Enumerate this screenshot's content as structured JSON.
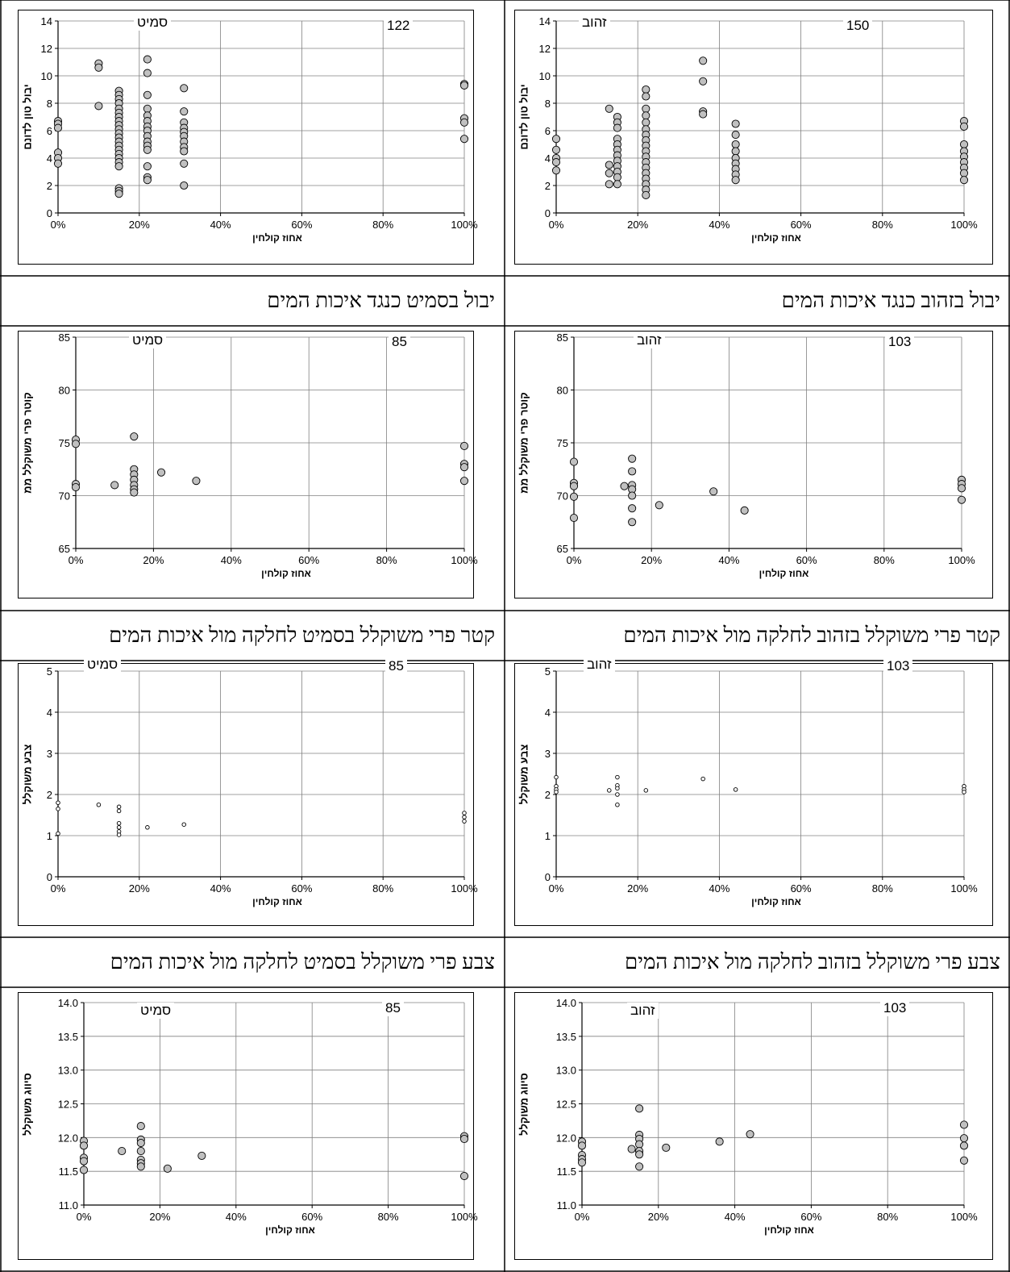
{
  "captions": {
    "r1_left": "יבול בסמיט כנגד איכות המים",
    "r1_right": "יבול בזהוב כנגד איכות המים",
    "r2_left": "קטר פרי משוקלל בסמיט לחלקה מול איכות המים",
    "r2_right": "קטר פרי משוקלל בזהוב לחלקה מול איכות המים",
    "r3_left": "צבע פרי משוקלל בסמיט לחלקה מול איכות המים",
    "r3_right": "צבע פרי משוקלל בזהוב לחלקה מול איכות המים"
  },
  "chart_data": [
    {
      "id": "yield-smit",
      "type": "scatter",
      "variety": "סמיט",
      "count": "122",
      "xlabel": "אחוז קולחין",
      "ylabel": "יבול טון לדונם",
      "xlim": [
        0,
        1
      ],
      "ylim": [
        0,
        14
      ],
      "x_ticks": [
        "0%",
        "20%",
        "40%",
        "60%",
        "80%",
        "100%"
      ],
      "y_ticks": [
        "0",
        "2",
        "4",
        "6",
        "8",
        "10",
        "12",
        "14"
      ],
      "marker": "large",
      "points": [
        [
          0,
          6.7
        ],
        [
          0,
          6.5
        ],
        [
          0,
          6.2
        ],
        [
          0,
          4.4
        ],
        [
          0,
          4.0
        ],
        [
          0,
          3.6
        ],
        [
          0.1,
          10.9
        ],
        [
          0.1,
          10.6
        ],
        [
          0.1,
          7.8
        ],
        [
          0.15,
          8.9
        ],
        [
          0.15,
          8.6
        ],
        [
          0.15,
          8.3
        ],
        [
          0.15,
          8.0
        ],
        [
          0.15,
          7.6
        ],
        [
          0.15,
          7.3
        ],
        [
          0.15,
          7.0
        ],
        [
          0.15,
          6.7
        ],
        [
          0.15,
          6.4
        ],
        [
          0.15,
          6.1
        ],
        [
          0.15,
          5.8
        ],
        [
          0.15,
          5.5
        ],
        [
          0.15,
          5.2
        ],
        [
          0.15,
          4.9
        ],
        [
          0.15,
          4.6
        ],
        [
          0.15,
          4.3
        ],
        [
          0.15,
          4.0
        ],
        [
          0.15,
          3.7
        ],
        [
          0.15,
          3.4
        ],
        [
          0.15,
          1.8
        ],
        [
          0.15,
          1.6
        ],
        [
          0.15,
          1.4
        ],
        [
          0.22,
          11.2
        ],
        [
          0.22,
          10.2
        ],
        [
          0.22,
          8.6
        ],
        [
          0.22,
          7.6
        ],
        [
          0.22,
          7.1
        ],
        [
          0.22,
          6.7
        ],
        [
          0.22,
          6.3
        ],
        [
          0.22,
          6.0
        ],
        [
          0.22,
          5.6
        ],
        [
          0.22,
          5.2
        ],
        [
          0.22,
          4.9
        ],
        [
          0.22,
          4.6
        ],
        [
          0.22,
          3.4
        ],
        [
          0.22,
          2.6
        ],
        [
          0.22,
          2.4
        ],
        [
          0.31,
          9.1
        ],
        [
          0.31,
          7.4
        ],
        [
          0.31,
          6.6
        ],
        [
          0.31,
          6.2
        ],
        [
          0.31,
          5.9
        ],
        [
          0.31,
          5.6
        ],
        [
          0.31,
          5.2
        ],
        [
          0.31,
          4.8
        ],
        [
          0.31,
          4.5
        ],
        [
          0.31,
          3.6
        ],
        [
          0.31,
          2.0
        ],
        [
          1,
          9.4
        ],
        [
          1,
          9.3
        ],
        [
          1,
          6.9
        ],
        [
          1,
          6.6
        ],
        [
          1,
          5.4
        ]
      ]
    },
    {
      "id": "yield-zahov",
      "type": "scatter",
      "variety": "זהוב",
      "count": "150",
      "xlabel": "אחוז קולחין",
      "ylabel": "יבול טון לדונם",
      "xlim": [
        0,
        1
      ],
      "ylim": [
        0,
        14
      ],
      "x_ticks": [
        "0%",
        "20%",
        "40%",
        "60%",
        "80%",
        "100%"
      ],
      "y_ticks": [
        "0",
        "2",
        "4",
        "6",
        "8",
        "10",
        "12",
        "14"
      ],
      "marker": "large",
      "points": [
        [
          0,
          5.4
        ],
        [
          0,
          4.6
        ],
        [
          0,
          4.0
        ],
        [
          0,
          3.7
        ],
        [
          0,
          3.1
        ],
        [
          0.13,
          7.6
        ],
        [
          0.13,
          3.5
        ],
        [
          0.13,
          2.9
        ],
        [
          0.13,
          2.1
        ],
        [
          0.15,
          7.0
        ],
        [
          0.15,
          6.6
        ],
        [
          0.15,
          6.2
        ],
        [
          0.15,
          5.4
        ],
        [
          0.15,
          5.0
        ],
        [
          0.15,
          4.6
        ],
        [
          0.15,
          4.2
        ],
        [
          0.15,
          3.8
        ],
        [
          0.15,
          3.4
        ],
        [
          0.15,
          3.0
        ],
        [
          0.15,
          2.6
        ],
        [
          0.15,
          2.1
        ],
        [
          0.22,
          9.0
        ],
        [
          0.22,
          8.5
        ],
        [
          0.22,
          7.6
        ],
        [
          0.22,
          7.1
        ],
        [
          0.22,
          6.6
        ],
        [
          0.22,
          6.1
        ],
        [
          0.22,
          5.7
        ],
        [
          0.22,
          5.3
        ],
        [
          0.22,
          4.9
        ],
        [
          0.22,
          4.5
        ],
        [
          0.22,
          4.1
        ],
        [
          0.22,
          3.7
        ],
        [
          0.22,
          3.3
        ],
        [
          0.22,
          2.9
        ],
        [
          0.22,
          2.5
        ],
        [
          0.22,
          2.1
        ],
        [
          0.22,
          1.7
        ],
        [
          0.22,
          1.3
        ],
        [
          0.36,
          11.1
        ],
        [
          0.36,
          9.6
        ],
        [
          0.36,
          7.4
        ],
        [
          0.36,
          7.2
        ],
        [
          0.44,
          6.5
        ],
        [
          0.44,
          5.7
        ],
        [
          0.44,
          5.0
        ],
        [
          0.44,
          4.5
        ],
        [
          0.44,
          4.0
        ],
        [
          0.44,
          3.6
        ],
        [
          0.44,
          3.2
        ],
        [
          0.44,
          2.8
        ],
        [
          0.44,
          2.4
        ],
        [
          1,
          6.7
        ],
        [
          1,
          6.3
        ],
        [
          1,
          5.0
        ],
        [
          1,
          4.5
        ],
        [
          1,
          4.1
        ],
        [
          1,
          3.7
        ],
        [
          1,
          3.3
        ],
        [
          1,
          2.9
        ],
        [
          1,
          2.4
        ]
      ]
    },
    {
      "id": "diameter-smit",
      "type": "scatter",
      "variety": "סמיט",
      "count": "85",
      "xlabel": "אחוז קולחין",
      "ylabel": "קוטר פרי משוקלל ממ",
      "xlim": [
        0,
        1
      ],
      "ylim": [
        65,
        85
      ],
      "x_ticks": [
        "0%",
        "20%",
        "40%",
        "60%",
        "80%",
        "100%"
      ],
      "y_ticks": [
        "65",
        "70",
        "75",
        "80",
        "85"
      ],
      "marker": "large",
      "points": [
        [
          0,
          75.3
        ],
        [
          0,
          74.9
        ],
        [
          0,
          71.1
        ],
        [
          0,
          70.8
        ],
        [
          0.1,
          71.0
        ],
        [
          0.15,
          75.6
        ],
        [
          0.15,
          72.5
        ],
        [
          0.15,
          72.0
        ],
        [
          0.15,
          71.5
        ],
        [
          0.15,
          71.0
        ],
        [
          0.15,
          70.6
        ],
        [
          0.15,
          70.3
        ],
        [
          0.22,
          72.2
        ],
        [
          0.31,
          71.4
        ],
        [
          1,
          74.7
        ],
        [
          1,
          73.0
        ],
        [
          1,
          72.7
        ],
        [
          1,
          71.4
        ]
      ]
    },
    {
      "id": "diameter-zahov",
      "type": "scatter",
      "variety": "זהוב",
      "count": "103",
      "xlabel": "אחוז קולחין",
      "ylabel": "קוטר פרי משוקלל ממ",
      "xlim": [
        0,
        1
      ],
      "ylim": [
        65,
        85
      ],
      "x_ticks": [
        "0%",
        "20%",
        "40%",
        "60%",
        "80%",
        "100%"
      ],
      "y_ticks": [
        "65",
        "70",
        "75",
        "80",
        "85"
      ],
      "marker": "large",
      "points": [
        [
          0,
          73.2
        ],
        [
          0,
          71.2
        ],
        [
          0,
          70.9
        ],
        [
          0,
          69.9
        ],
        [
          0,
          67.9
        ],
        [
          0.13,
          70.9
        ],
        [
          0.15,
          73.5
        ],
        [
          0.15,
          72.3
        ],
        [
          0.15,
          71.0
        ],
        [
          0.15,
          70.6
        ],
        [
          0.15,
          70.0
        ],
        [
          0.15,
          68.8
        ],
        [
          0.15,
          67.5
        ],
        [
          0.22,
          69.1
        ],
        [
          0.36,
          70.4
        ],
        [
          0.44,
          68.6
        ],
        [
          1,
          71.5
        ],
        [
          1,
          71.1
        ],
        [
          1,
          70.7
        ],
        [
          1,
          69.6
        ]
      ]
    },
    {
      "id": "color-smit",
      "type": "scatter",
      "variety": "סמיט",
      "count": "85",
      "xlabel": "אחוז קולחין",
      "ylabel": "צבע משוקלל",
      "xlim": [
        0,
        1
      ],
      "ylim": [
        0,
        5
      ],
      "x_ticks": [
        "0%",
        "20%",
        "40%",
        "60%",
        "80%",
        "100%"
      ],
      "y_ticks": [
        "0",
        "1",
        "2",
        "3",
        "4",
        "5"
      ],
      "marker": "small",
      "points": [
        [
          0,
          1.8
        ],
        [
          0,
          1.65
        ],
        [
          0,
          1.05
        ],
        [
          0.1,
          1.75
        ],
        [
          0.15,
          1.7
        ],
        [
          0.15,
          1.6
        ],
        [
          0.15,
          1.3
        ],
        [
          0.15,
          1.2
        ],
        [
          0.15,
          1.1
        ],
        [
          0.15,
          1.02
        ],
        [
          0.22,
          1.2
        ],
        [
          0.31,
          1.27
        ],
        [
          1,
          1.55
        ],
        [
          1,
          1.45
        ],
        [
          1,
          1.35
        ]
      ]
    },
    {
      "id": "color-zahov",
      "type": "scatter",
      "variety": "זהוב",
      "count": "103",
      "xlabel": "אחוז קולחין",
      "ylabel": "צבע משוקלל",
      "xlim": [
        0,
        1
      ],
      "ylim": [
        0,
        5
      ],
      "x_ticks": [
        "0%",
        "20%",
        "40%",
        "60%",
        "80%",
        "100%"
      ],
      "y_ticks": [
        "0",
        "1",
        "2",
        "3",
        "4",
        "5"
      ],
      "marker": "small",
      "points": [
        [
          0,
          2.42
        ],
        [
          0,
          2.2
        ],
        [
          0,
          2.12
        ],
        [
          0,
          2.06
        ],
        [
          0.13,
          2.1
        ],
        [
          0.15,
          2.42
        ],
        [
          0.15,
          2.22
        ],
        [
          0.15,
          2.15
        ],
        [
          0.15,
          2.0
        ],
        [
          0.15,
          1.75
        ],
        [
          0.22,
          2.1
        ],
        [
          0.36,
          2.38
        ],
        [
          0.44,
          2.12
        ],
        [
          1,
          2.2
        ],
        [
          1,
          2.12
        ],
        [
          1,
          2.06
        ]
      ]
    },
    {
      "id": "grade-smit",
      "type": "scatter",
      "variety": "סמיט",
      "count": "85",
      "xlabel": "אחוז קולחין",
      "ylabel": "סיווג משוקלל",
      "xlim": [
        0,
        1
      ],
      "ylim": [
        11,
        14
      ],
      "x_ticks": [
        "0%",
        "20%",
        "40%",
        "60%",
        "80%",
        "100%"
      ],
      "y_ticks": [
        "11.0",
        "11.5",
        "12.0",
        "12.5",
        "13.0",
        "13.5",
        "14.0"
      ],
      "marker": "large",
      "points": [
        [
          0,
          11.95
        ],
        [
          0,
          11.88
        ],
        [
          0,
          11.7
        ],
        [
          0,
          11.65
        ],
        [
          0,
          11.52
        ],
        [
          0.1,
          11.8
        ],
        [
          0.15,
          12.17
        ],
        [
          0.15,
          11.97
        ],
        [
          0.15,
          11.92
        ],
        [
          0.15,
          11.8
        ],
        [
          0.15,
          11.67
        ],
        [
          0.15,
          11.62
        ],
        [
          0.15,
          11.57
        ],
        [
          0.22,
          11.54
        ],
        [
          0.31,
          11.73
        ],
        [
          1,
          12.02
        ],
        [
          1,
          11.98
        ],
        [
          1,
          11.43
        ]
      ]
    },
    {
      "id": "grade-zahov",
      "type": "scatter",
      "variety": "זהוב",
      "count": "103",
      "xlabel": "אחוז קולחין",
      "ylabel": "סיווג משוקלל",
      "xlim": [
        0,
        1
      ],
      "ylim": [
        11,
        14
      ],
      "x_ticks": [
        "0%",
        "20%",
        "40%",
        "60%",
        "80%",
        "100%"
      ],
      "y_ticks": [
        "11.0",
        "11.5",
        "12.0",
        "12.5",
        "13.0",
        "13.5",
        "14.0"
      ],
      "marker": "large",
      "points": [
        [
          0,
          11.94
        ],
        [
          0,
          11.88
        ],
        [
          0,
          11.74
        ],
        [
          0,
          11.68
        ],
        [
          0,
          11.63
        ],
        [
          0.13,
          11.83
        ],
        [
          0.15,
          12.43
        ],
        [
          0.15,
          12.04
        ],
        [
          0.15,
          11.98
        ],
        [
          0.15,
          11.9
        ],
        [
          0.15,
          11.8
        ],
        [
          0.15,
          11.75
        ],
        [
          0.15,
          11.57
        ],
        [
          0.22,
          11.85
        ],
        [
          0.36,
          11.94
        ],
        [
          0.44,
          12.05
        ],
        [
          1,
          12.19
        ],
        [
          1,
          11.99
        ],
        [
          1,
          11.88
        ],
        [
          1,
          11.66
        ]
      ]
    }
  ]
}
